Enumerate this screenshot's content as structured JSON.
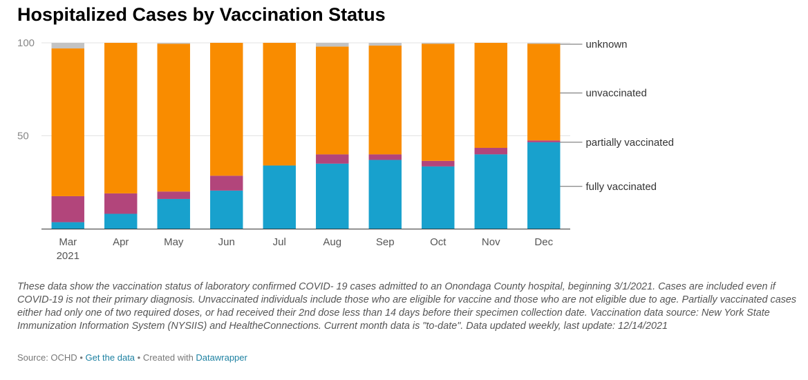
{
  "chart_data": {
    "type": "bar",
    "stacked": true,
    "title": "Hospitalized Cases by Vaccination Status",
    "categories": [
      "Mar",
      "Apr",
      "May",
      "Jun",
      "Jul",
      "Aug",
      "Sep",
      "Oct",
      "Nov",
      "Dec"
    ],
    "first_category_sublabel": "2021",
    "ylim": [
      0,
      100
    ],
    "yticks": [
      50,
      100
    ],
    "grid": true,
    "legend": "right, labels beside last bar",
    "series": [
      {
        "name": "fully vaccinated",
        "color": "#18a1cd",
        "values": [
          3.5,
          8,
          16,
          20.5,
          34,
          35,
          37,
          33.5,
          40,
          46.5
        ]
      },
      {
        "name": "partially vaccinated",
        "color": "#b2457b",
        "values": [
          14,
          11,
          4,
          8,
          0,
          5,
          3,
          3,
          3.5,
          1
        ]
      },
      {
        "name": "unvaccinated",
        "color": "#f98c00",
        "values": [
          79.5,
          81,
          79.5,
          71.5,
          66,
          58,
          58.5,
          63,
          56.5,
          52
        ]
      },
      {
        "name": "unknown",
        "color": "#c3c3c3",
        "values": [
          3,
          0,
          0.5,
          0,
          0,
          2,
          1.5,
          0.5,
          0,
          0.5
        ]
      }
    ]
  },
  "notes": "These data show the vaccination status of laboratory confirmed COVID- 19 cases admitted to an Onondaga County hospital, beginning 3/1/2021. Cases are included even if COVID-19 is not their primary diagnosis.  Unvaccinated individuals include those who are eligible for vaccine and those who are not eligible due to age. Partially vaccinated cases either had only one of two required doses, or had received their 2nd dose less than 14 days before their specimen collection date. Vaccination data source: New York State Immunization Information System (NYSIIS) and HealtheConnections. Current month data is \"to-date\". Data updated weekly, last update: 12/14/2021",
  "footer": {
    "source": "Source: OCHD",
    "separator": " • ",
    "get_data": "Get the data",
    "created_with": "Created with ",
    "tool": "Datawrapper"
  }
}
